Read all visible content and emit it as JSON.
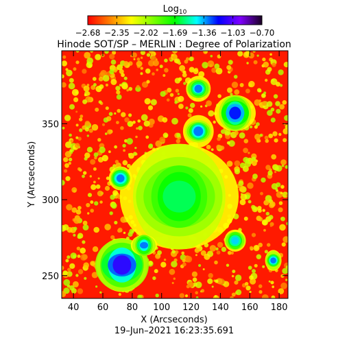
{
  "chart_data": {
    "type": "heatmap",
    "title": "Hinode SOT/SP – MERLIN : Degree of Polarization",
    "xlabel": "X (Arcseconds)",
    "ylabel": "Y (Arcseconds)",
    "xlim": [
      32,
      186
    ],
    "ylim": [
      235,
      398
    ],
    "xticks": [
      40,
      60,
      80,
      100,
      120,
      140,
      160,
      180
    ],
    "yticks": [
      250,
      300,
      350
    ],
    "colorbar": {
      "label": "Log",
      "label_subscript": "10",
      "scale": "log10",
      "range": [
        -2.68,
        -0.7
      ],
      "ticks": [
        "−2.68",
        "−2.35",
        "−2.02",
        "−1.69",
        "−1.36",
        "−1.03",
        "−0.70"
      ],
      "colormap": [
        "#ff0000",
        "#ff7f00",
        "#ffff00",
        "#7fff00",
        "#00ff00",
        "#00ffff",
        "#0000ff",
        "#7f00ff",
        "#1a0022"
      ]
    },
    "features": [
      {
        "name": "sunspot",
        "x": 112,
        "y": 302,
        "radius": 15,
        "value": -0.8
      },
      {
        "name": "penumbra",
        "x": 112,
        "y": 302,
        "radius": 22,
        "value": -1.6
      },
      {
        "name": "plage",
        "x": 73,
        "y": 257,
        "radius": 12,
        "value": -1.1
      },
      {
        "name": "plage",
        "x": 150,
        "y": 357,
        "radius": 8,
        "value": -1.2
      },
      {
        "name": "plage",
        "x": 125,
        "y": 373,
        "radius": 5,
        "value": -1.3
      },
      {
        "name": "plage",
        "x": 125,
        "y": 345,
        "radius": 6,
        "value": -1.3
      },
      {
        "name": "plage",
        "x": 72,
        "y": 314,
        "radius": 5,
        "value": -1.3
      },
      {
        "name": "plage",
        "x": 150,
        "y": 273,
        "radius": 5,
        "value": -1.4
      },
      {
        "name": "plage",
        "x": 176,
        "y": 260,
        "radius": 4,
        "value": -1.3
      },
      {
        "name": "plage",
        "x": 88,
        "y": 270,
        "radius": 5,
        "value": -1.3
      }
    ],
    "timestamp": "19–Jun–2021 16:23:35.691"
  }
}
